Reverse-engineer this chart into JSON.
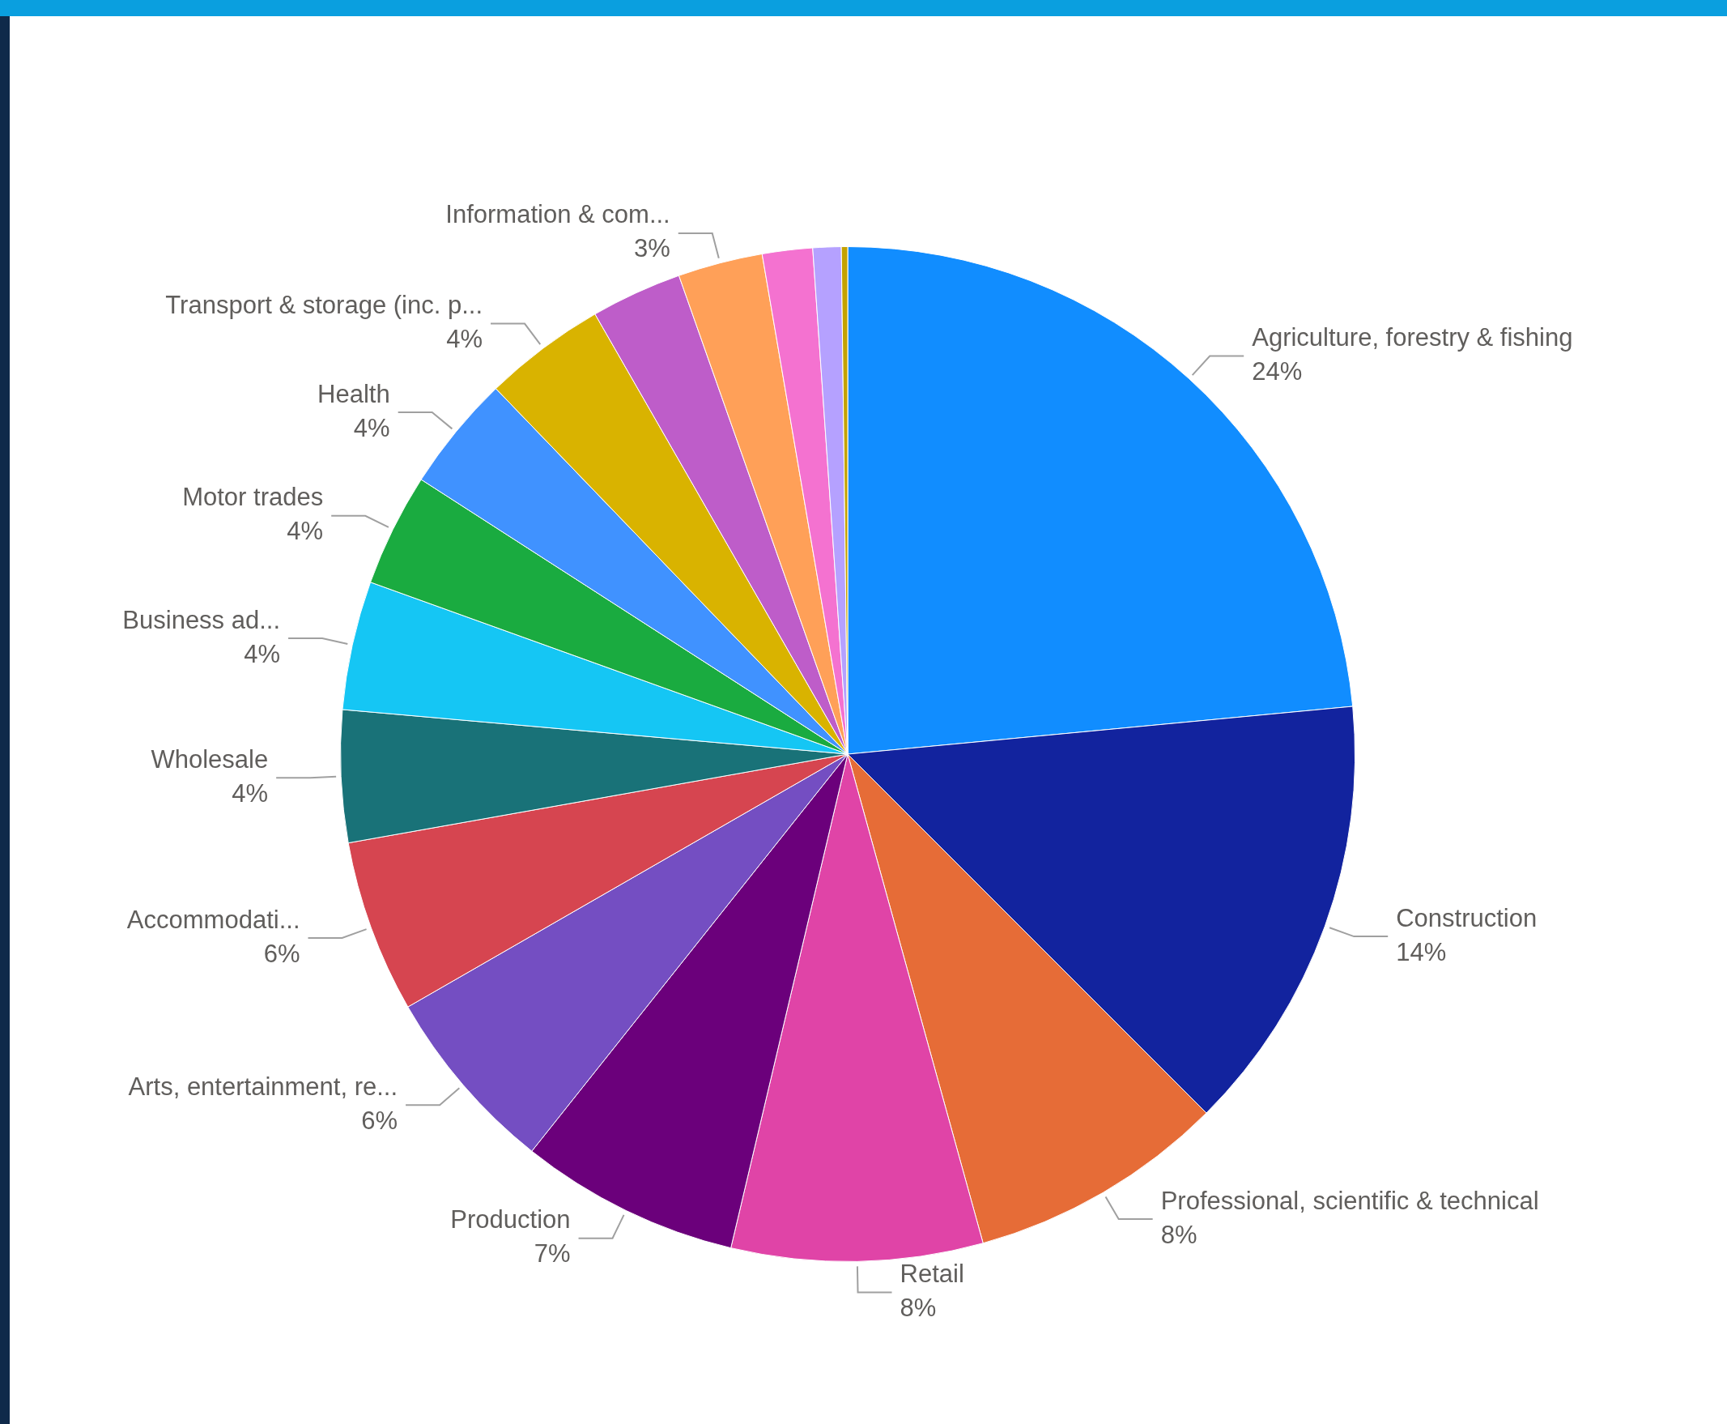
{
  "chart_data": {
    "type": "pie",
    "categories": [
      "Agriculture, forestry & fishing",
      "Construction",
      "Professional, scientific & technical",
      "Retail",
      "Production",
      "Arts, entertainment, re...",
      "Accommodati...",
      "Wholesale",
      "Business ad...",
      "Motor trades",
      "Health",
      "Transport & storage (inc. p...",
      null,
      "Information & com...",
      null,
      null,
      null
    ],
    "values": [
      23.5,
      14.0,
      8.2,
      8.0,
      7.0,
      6.0,
      5.5,
      4.2,
      4.1,
      3.6,
      3.7,
      3.9,
      2.9,
      2.7,
      1.6,
      0.9,
      0.2
    ],
    "value_labels": [
      "24%",
      "14%",
      "8%",
      "8%",
      "7%",
      "6%",
      "6%",
      "4%",
      "4%",
      "4%",
      "4%",
      "4%",
      null,
      "3%",
      null,
      null,
      null
    ],
    "colors": [
      "#118dff",
      "#12239e",
      "#e66c37",
      "#e044a7",
      "#6b007b",
      "#744ec2",
      "#d64550",
      "#197278",
      "#15c6f4",
      "#1aab40",
      "#4092ff",
      "#d9b300",
      "#be5dc9",
      "#ffa058",
      "#f472d0",
      "#b5a1ff",
      "#c4a200"
    ],
    "legend": false
  }
}
